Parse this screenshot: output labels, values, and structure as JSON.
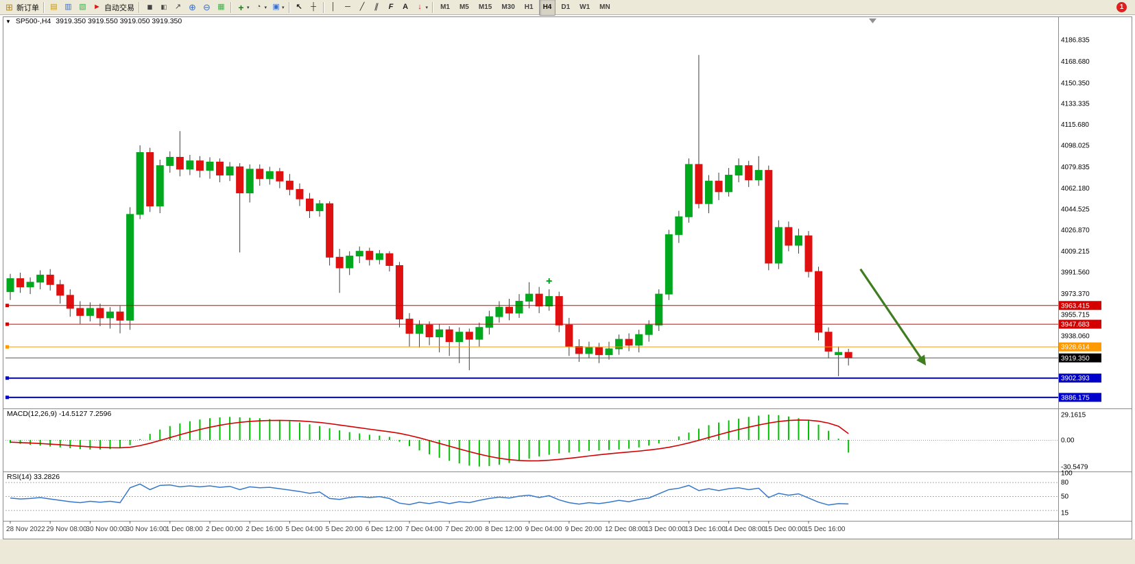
{
  "window": {
    "badge": "1"
  },
  "chart_header": {
    "dropdown": "▼",
    "symbol_period": "SP500-,H4",
    "ohlc": "3919.350 3919.550 3919.050 3919.350"
  },
  "indicators": {
    "macd": {
      "text": "MACD(12,26,9) -14.5127 7.2596"
    },
    "rsi": {
      "text": "RSI(14) 33.2826"
    }
  },
  "toolbar": {
    "groups": [
      {
        "items": [
          {
            "name": "new-order-button",
            "label": "新订单",
            "icon": "new-order-icon"
          }
        ]
      },
      {
        "items": [
          {
            "name": "market-watch-button",
            "icon": "market-watch-icon"
          },
          {
            "name": "data-window-button",
            "icon": "data-window-icon"
          },
          {
            "name": "navigator-button",
            "icon": "navigator-icon"
          },
          {
            "name": "auto-trading-button",
            "label": "自动交易",
            "icon": "auto-trading-icon"
          }
        ]
      },
      {
        "items": [
          {
            "name": "bar-chart-button",
            "icon": "bar-chart-icon"
          },
          {
            "name": "candles-chart-button",
            "icon": "candles-icon"
          },
          {
            "name": "line-chart-button",
            "icon": "line-chart-icon"
          },
          {
            "name": "zoom-in-button",
            "icon": "zoom-in-icon"
          },
          {
            "name": "zoom-out-button",
            "icon": "zoom-out-icon"
          },
          {
            "name": "tile-windows-button",
            "icon": "tile-windows-icon"
          }
        ]
      },
      {
        "items": [
          {
            "name": "indicators-button",
            "icon": "indicators-icon",
            "caret": true
          },
          {
            "name": "periods-button",
            "icon": "clock-icon",
            "caret": true
          },
          {
            "name": "templates-button",
            "icon": "templates-icon",
            "caret": true
          }
        ]
      },
      {
        "items": [
          {
            "name": "cursor-button",
            "icon": "cursor-icon"
          },
          {
            "name": "crosshair-button",
            "icon": "crosshair-icon"
          }
        ]
      },
      {
        "items": [
          {
            "name": "vertical-line-button",
            "icon": "vline-icon"
          },
          {
            "name": "horizontal-line-button",
            "icon": "hline-icon"
          },
          {
            "name": "trendline-button",
            "icon": "trendline-icon"
          },
          {
            "name": "channel-button",
            "icon": "channel-icon"
          },
          {
            "name": "fibonacci-button",
            "icon": "fibonacci-icon"
          },
          {
            "name": "text-button",
            "icon": "text-icon"
          },
          {
            "name": "arrows-button",
            "icon": "arrow-tool-icon",
            "caret": true
          }
        ]
      }
    ],
    "timeframes": [
      "M1",
      "M5",
      "M15",
      "M30",
      "H1",
      "H4",
      "D1",
      "W1",
      "MN"
    ],
    "active_timeframe": "H4"
  },
  "chart_data": [
    {
      "type": "candlestick",
      "symbol": "SP500-",
      "timeframe": "H4",
      "price_range": [
        3880,
        4196
      ],
      "y_axis_labels": [
        "4186.835",
        "4168.680",
        "4150.350",
        "4133.335",
        "4115.680",
        "4098.025",
        "4079.835",
        "4062.180",
        "4044.525",
        "4026.870",
        "4009.215",
        "3991.560",
        "3973.370",
        "3955.715",
        "3938.060"
      ],
      "x_labels": [
        "28 Nov 2022",
        "29 Nov 08:00",
        "30 Nov 00:00",
        "30 Nov 16:00",
        "1 Dec 08:00",
        "2 Dec 00:00",
        "2 Dec 16:00",
        "5 Dec 04:00",
        "5 Dec 20:00",
        "6 Dec 12:00",
        "7 Dec 04:00",
        "7 Dec 20:00",
        "8 Dec 12:00",
        "9 Dec 04:00",
        "9 Dec 20:00",
        "12 Dec 08:00",
        "13 Dec 00:00",
        "13 Dec 16:00",
        "14 Dec 08:00",
        "15 Dec 00:00",
        "15 Dec 16:00"
      ],
      "ohlc": [
        [
          3975,
          3990,
          3968,
          3986
        ],
        [
          3986,
          3991,
          3974,
          3979
        ],
        [
          3979,
          3987,
          3973,
          3983
        ],
        [
          3983,
          3993,
          3977,
          3989
        ],
        [
          3989,
          3994,
          3976,
          3981
        ],
        [
          3981,
          3985,
          3965,
          3972
        ],
        [
          3972,
          3977,
          3954,
          3961
        ],
        [
          3961,
          3967,
          3948,
          3955
        ],
        [
          3955,
          3966,
          3950,
          3961
        ],
        [
          3961,
          3965,
          3946,
          3953
        ],
        [
          3953,
          3962,
          3944,
          3958
        ],
        [
          3958,
          3963,
          3940,
          3951
        ],
        [
          3951,
          4046,
          3943,
          4040
        ],
        [
          4040,
          4098,
          4036,
          4092
        ],
        [
          4092,
          4096,
          4042,
          4047
        ],
        [
          4047,
          4086,
          4041,
          4081
        ],
        [
          4081,
          4093,
          4075,
          4088
        ],
        [
          4088,
          4110,
          4072,
          4078
        ],
        [
          4078,
          4090,
          4073,
          4085
        ],
        [
          4085,
          4089,
          4071,
          4077
        ],
        [
          4077,
          4088,
          4070,
          4084
        ],
        [
          4084,
          4087,
          4067,
          4073
        ],
        [
          4073,
          4084,
          4068,
          4080
        ],
        [
          4080,
          4083,
          4008,
          4058
        ],
        [
          4058,
          4082,
          4050,
          4078
        ],
        [
          4078,
          4082,
          4064,
          4070
        ],
        [
          4070,
          4080,
          4065,
          4076
        ],
        [
          4076,
          4079,
          4062,
          4068
        ],
        [
          4068,
          4074,
          4056,
          4061
        ],
        [
          4061,
          4066,
          4047,
          4053
        ],
        [
          4053,
          4058,
          4037,
          4043
        ],
        [
          4043,
          4052,
          4038,
          4049
        ],
        [
          4049,
          4051,
          3997,
          4004
        ],
        [
          4004,
          4011,
          3974,
          3995
        ],
        [
          3995,
          4009,
          3989,
          4005
        ],
        [
          4005,
          4013,
          3999,
          4009
        ],
        [
          4009,
          4012,
          3997,
          4002
        ],
        [
          4002,
          4010,
          3998,
          4007
        ],
        [
          4007,
          4009,
          3992,
          3997
        ],
        [
          3997,
          4000,
          3945,
          3952
        ],
        [
          3952,
          3957,
          3929,
          3940
        ],
        [
          3940,
          3951,
          3928,
          3947
        ],
        [
          3947,
          3950,
          3930,
          3937
        ],
        [
          3937,
          3948,
          3924,
          3943
        ],
        [
          3943,
          3946,
          3921,
          3933
        ],
        [
          3933,
          3945,
          3915,
          3941
        ],
        [
          3941,
          3944,
          3909,
          3935
        ],
        [
          3935,
          3949,
          3929,
          3945
        ],
        [
          3945,
          3959,
          3939,
          3954
        ],
        [
          3954,
          3967,
          3949,
          3962
        ],
        [
          3962,
          3969,
          3951,
          3957
        ],
        [
          3957,
          3973,
          3953,
          3967
        ],
        [
          3967,
          3983,
          3961,
          3973
        ],
        [
          3973,
          3979,
          3957,
          3963
        ],
        [
          3963,
          3977,
          3959,
          3971
        ],
        [
          3971,
          3975,
          3941,
          3947
        ],
        [
          3947,
          3953,
          3921,
          3929
        ],
        [
          3929,
          3935,
          3916,
          3923
        ],
        [
          3923,
          3933,
          3919,
          3928
        ],
        [
          3928,
          3932,
          3915,
          3922
        ],
        [
          3922,
          3933,
          3918,
          3927
        ],
        [
          3927,
          3939,
          3922,
          3935
        ],
        [
          3935,
          3940,
          3925,
          3930
        ],
        [
          3930,
          3943,
          3924,
          3939
        ],
        [
          3939,
          3951,
          3933,
          3947
        ],
        [
          3947,
          3977,
          3942,
          3973
        ],
        [
          3973,
          4027,
          3968,
          4023
        ],
        [
          4023,
          4043,
          4016,
          4038
        ],
        [
          4038,
          4087,
          4033,
          4082
        ],
        [
          4082,
          4174,
          4045,
          4049
        ],
        [
          4049,
          4073,
          4041,
          4068
        ],
        [
          4068,
          4075,
          4052,
          4059
        ],
        [
          4059,
          4079,
          4055,
          4073
        ],
        [
          4073,
          4087,
          4067,
          4081
        ],
        [
          4081,
          4085,
          4063,
          4069
        ],
        [
          4069,
          4089,
          4064,
          4077
        ],
        [
          4077,
          4081,
          3993,
          3999
        ],
        [
          3999,
          4035,
          3994,
          4029
        ],
        [
          4029,
          4034,
          4009,
          4014
        ],
        [
          4014,
          4028,
          4007,
          4022
        ],
        [
          4022,
          4026,
          3987,
          3992
        ],
        [
          3992,
          3996,
          3934,
          3941
        ],
        [
          3941,
          3945,
          3919,
          3925
        ],
        [
          3922,
          3929,
          3904,
          3924
        ],
        [
          3924,
          3927,
          3913,
          3919.35
        ]
      ],
      "colors": {
        "up": "#00A81E",
        "down": "#E01010",
        "wick": "#3c3c3c"
      },
      "hlines": [
        {
          "price": "3963.415",
          "color": "#D40000",
          "width": 1
        },
        {
          "price": "3947.683",
          "color": "#D40000",
          "width": 1
        },
        {
          "price": "3928.614",
          "color": "#FF9900",
          "width": 1
        },
        {
          "price": "3902.393",
          "color": "#0000CC",
          "width": 2
        },
        {
          "price": "3886.175",
          "color": "#0000CC",
          "width": 2
        }
      ],
      "current_price": "3919.350",
      "current_price_color": "#000000",
      "arrow": {
        "from": {
          "bar": 85.2,
          "price": 3994
        },
        "to": {
          "bar": 91.6,
          "price": 3915
        },
        "color": "#3F7D20"
      },
      "marker": {
        "bar": 54,
        "price": 3984,
        "color": "#00A81E"
      }
    },
    {
      "type": "macd",
      "label": "MACD(12,26,9)",
      "value_main": -14.5127,
      "value_signal": 7.2596,
      "y_labels": [
        "29.1615",
        "0.00",
        "-30.5479"
      ],
      "histogram_color": "#00C000",
      "signal_color": "#D40000",
      "main": [
        -3.5,
        -4.5,
        -5.5,
        -6.5,
        -7.5,
        -8.5,
        -9.5,
        -10.5,
        -11,
        -11,
        -10.5,
        -9.5,
        -6,
        1,
        7,
        12,
        16,
        19,
        21.5,
        23.5,
        25,
        26,
        26.5,
        26,
        25.5,
        25,
        24,
        23,
        21.5,
        20,
        18,
        16,
        13.5,
        11,
        9,
        7.5,
        6,
        5,
        3.5,
        -2,
        -7,
        -12,
        -16.5,
        -20.5,
        -24,
        -27,
        -29.5,
        -30.5,
        -30,
        -28.5,
        -26.5,
        -24,
        -21.5,
        -19,
        -17,
        -15.5,
        -14.5,
        -13.5,
        -12.5,
        -12,
        -11.5,
        -11,
        -10,
        -8.5,
        -6.5,
        -4,
        -0.5,
        4,
        8.5,
        13,
        17,
        20,
        22.5,
        24.5,
        26.5,
        28,
        29.16,
        28.5,
        27,
        25,
        22,
        17.5,
        10.5,
        1.5,
        -14.5127
      ],
      "signal": [
        -2.5,
        -3,
        -3.5,
        -4.1,
        -4.8,
        -5.5,
        -6.3,
        -7.1,
        -7.9,
        -8.5,
        -8.9,
        -9,
        -8.4,
        -6.5,
        -3.8,
        -0.6,
        2.7,
        6,
        9.1,
        12,
        14.6,
        16.9,
        18.8,
        20.2,
        21.3,
        22,
        22.4,
        22.5,
        22.3,
        21.9,
        21.1,
        20.1,
        18.8,
        17.2,
        15.6,
        14,
        12.4,
        10.9,
        9.4,
        7.6,
        5.2,
        2.4,
        -0.7,
        -3.9,
        -7.1,
        -10.3,
        -13.4,
        -16.3,
        -18.9,
        -21,
        -22.6,
        -23.6,
        -24,
        -23.9,
        -23.3,
        -22.3,
        -21.1,
        -19.8,
        -18.4,
        -17.1,
        -15.9,
        -14.8,
        -13.8,
        -12.8,
        -11.6,
        -10.2,
        -8.4,
        -6.1,
        -3.4,
        -0.4,
        2.8,
        6,
        9.1,
        12,
        14.7,
        17.2,
        19.4,
        21.2,
        22.4,
        22.9,
        22.7,
        21.6,
        19.4,
        15.8,
        7.2596
      ]
    },
    {
      "type": "rsi",
      "label": "RSI(14)",
      "value": 33.2826,
      "y_labels": [
        "100",
        "80",
        "50",
        "15"
      ],
      "levels": [
        80,
        50,
        20
      ],
      "line_color": "#3377CC",
      "values": [
        46,
        44,
        45,
        47,
        44,
        41,
        38,
        36,
        39,
        37,
        39,
        36,
        68,
        76,
        64,
        73,
        74,
        70,
        72,
        70,
        72,
        69,
        71,
        64,
        70,
        68,
        69,
        66,
        63,
        60,
        56,
        59,
        45,
        43,
        47,
        49,
        47,
        49,
        45,
        35,
        32,
        37,
        34,
        38,
        34,
        38,
        36,
        41,
        45,
        48,
        46,
        50,
        52,
        47,
        51,
        42,
        36,
        33,
        36,
        34,
        37,
        41,
        38,
        43,
        46,
        55,
        64,
        67,
        73,
        62,
        66,
        62,
        66,
        68,
        64,
        67,
        47,
        56,
        52,
        55,
        46,
        37,
        31,
        34,
        33.2826
      ]
    }
  ]
}
